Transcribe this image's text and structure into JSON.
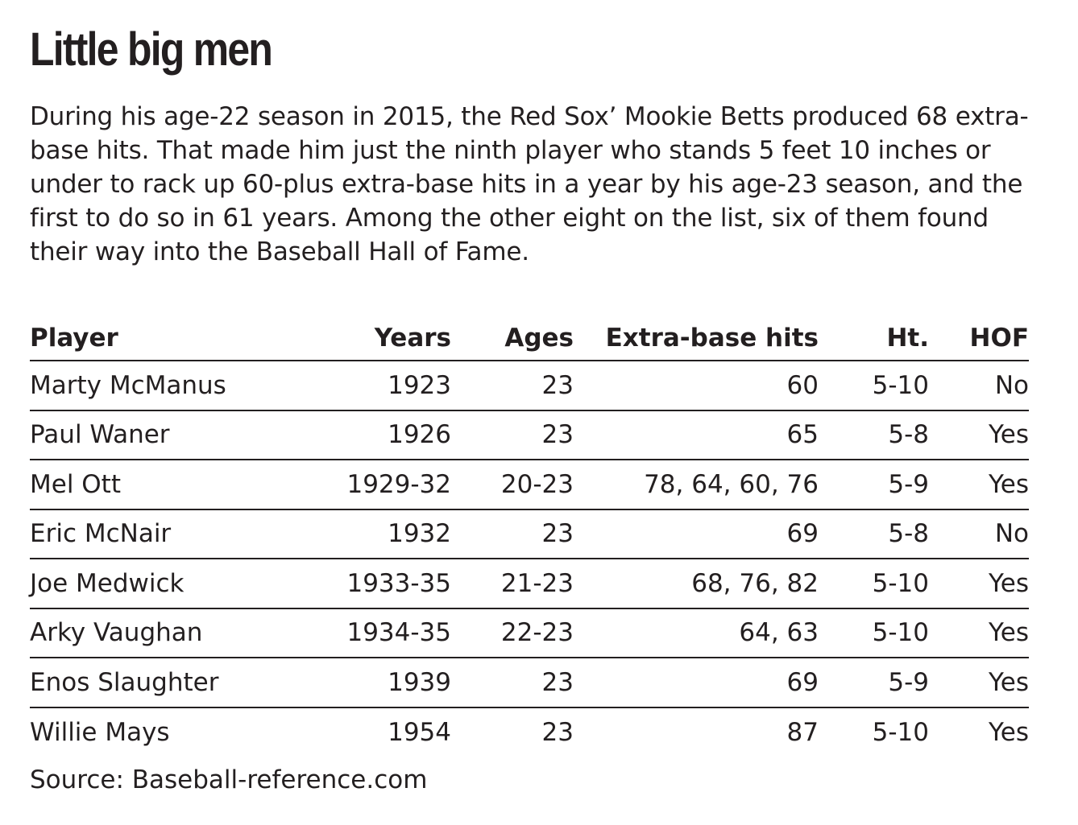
{
  "title": "Little big men",
  "intro": "During his age-22 season in 2015, the Red Sox’ Mookie Betts produced 68 extra-base hits. That made him just the ninth player who stands 5 feet 10 inches or under to rack up 60-plus extra-base hits in a year by his age-23 season, and the first to do so in 61 years. Among the other eight on the list, six of them found their way into the Baseball Hall of Fame.",
  "source": "Source: Baseball-reference.com",
  "colors": {
    "text": "#231f20",
    "background": "#ffffff"
  },
  "chart_data": {
    "type": "table",
    "columns": [
      "Player",
      "Years",
      "Ages",
      "Extra-base hits",
      "Ht.",
      "HOF"
    ],
    "rows": [
      [
        "Marty McManus",
        "1923",
        "23",
        "60",
        "5-10",
        "No"
      ],
      [
        "Paul Waner",
        "1926",
        "23",
        "65",
        "5-8",
        "Yes"
      ],
      [
        "Mel Ott",
        "1929-32",
        "20-23",
        "78, 64, 60, 76",
        "5-9",
        "Yes"
      ],
      [
        "Eric McNair",
        "1932",
        "23",
        "69",
        "5-8",
        "No"
      ],
      [
        "Joe Medwick",
        "1933-35",
        "21-23",
        "68, 76, 82",
        "5-10",
        "Yes"
      ],
      [
        "Arky Vaughan",
        "1934-35",
        "22-23",
        "64, 63",
        "5-10",
        "Yes"
      ],
      [
        "Enos Slaughter",
        "1939",
        "23",
        "69",
        "5-9",
        "Yes"
      ],
      [
        "Willie Mays",
        "1954",
        "23",
        "87",
        "5-10",
        "Yes"
      ]
    ]
  }
}
